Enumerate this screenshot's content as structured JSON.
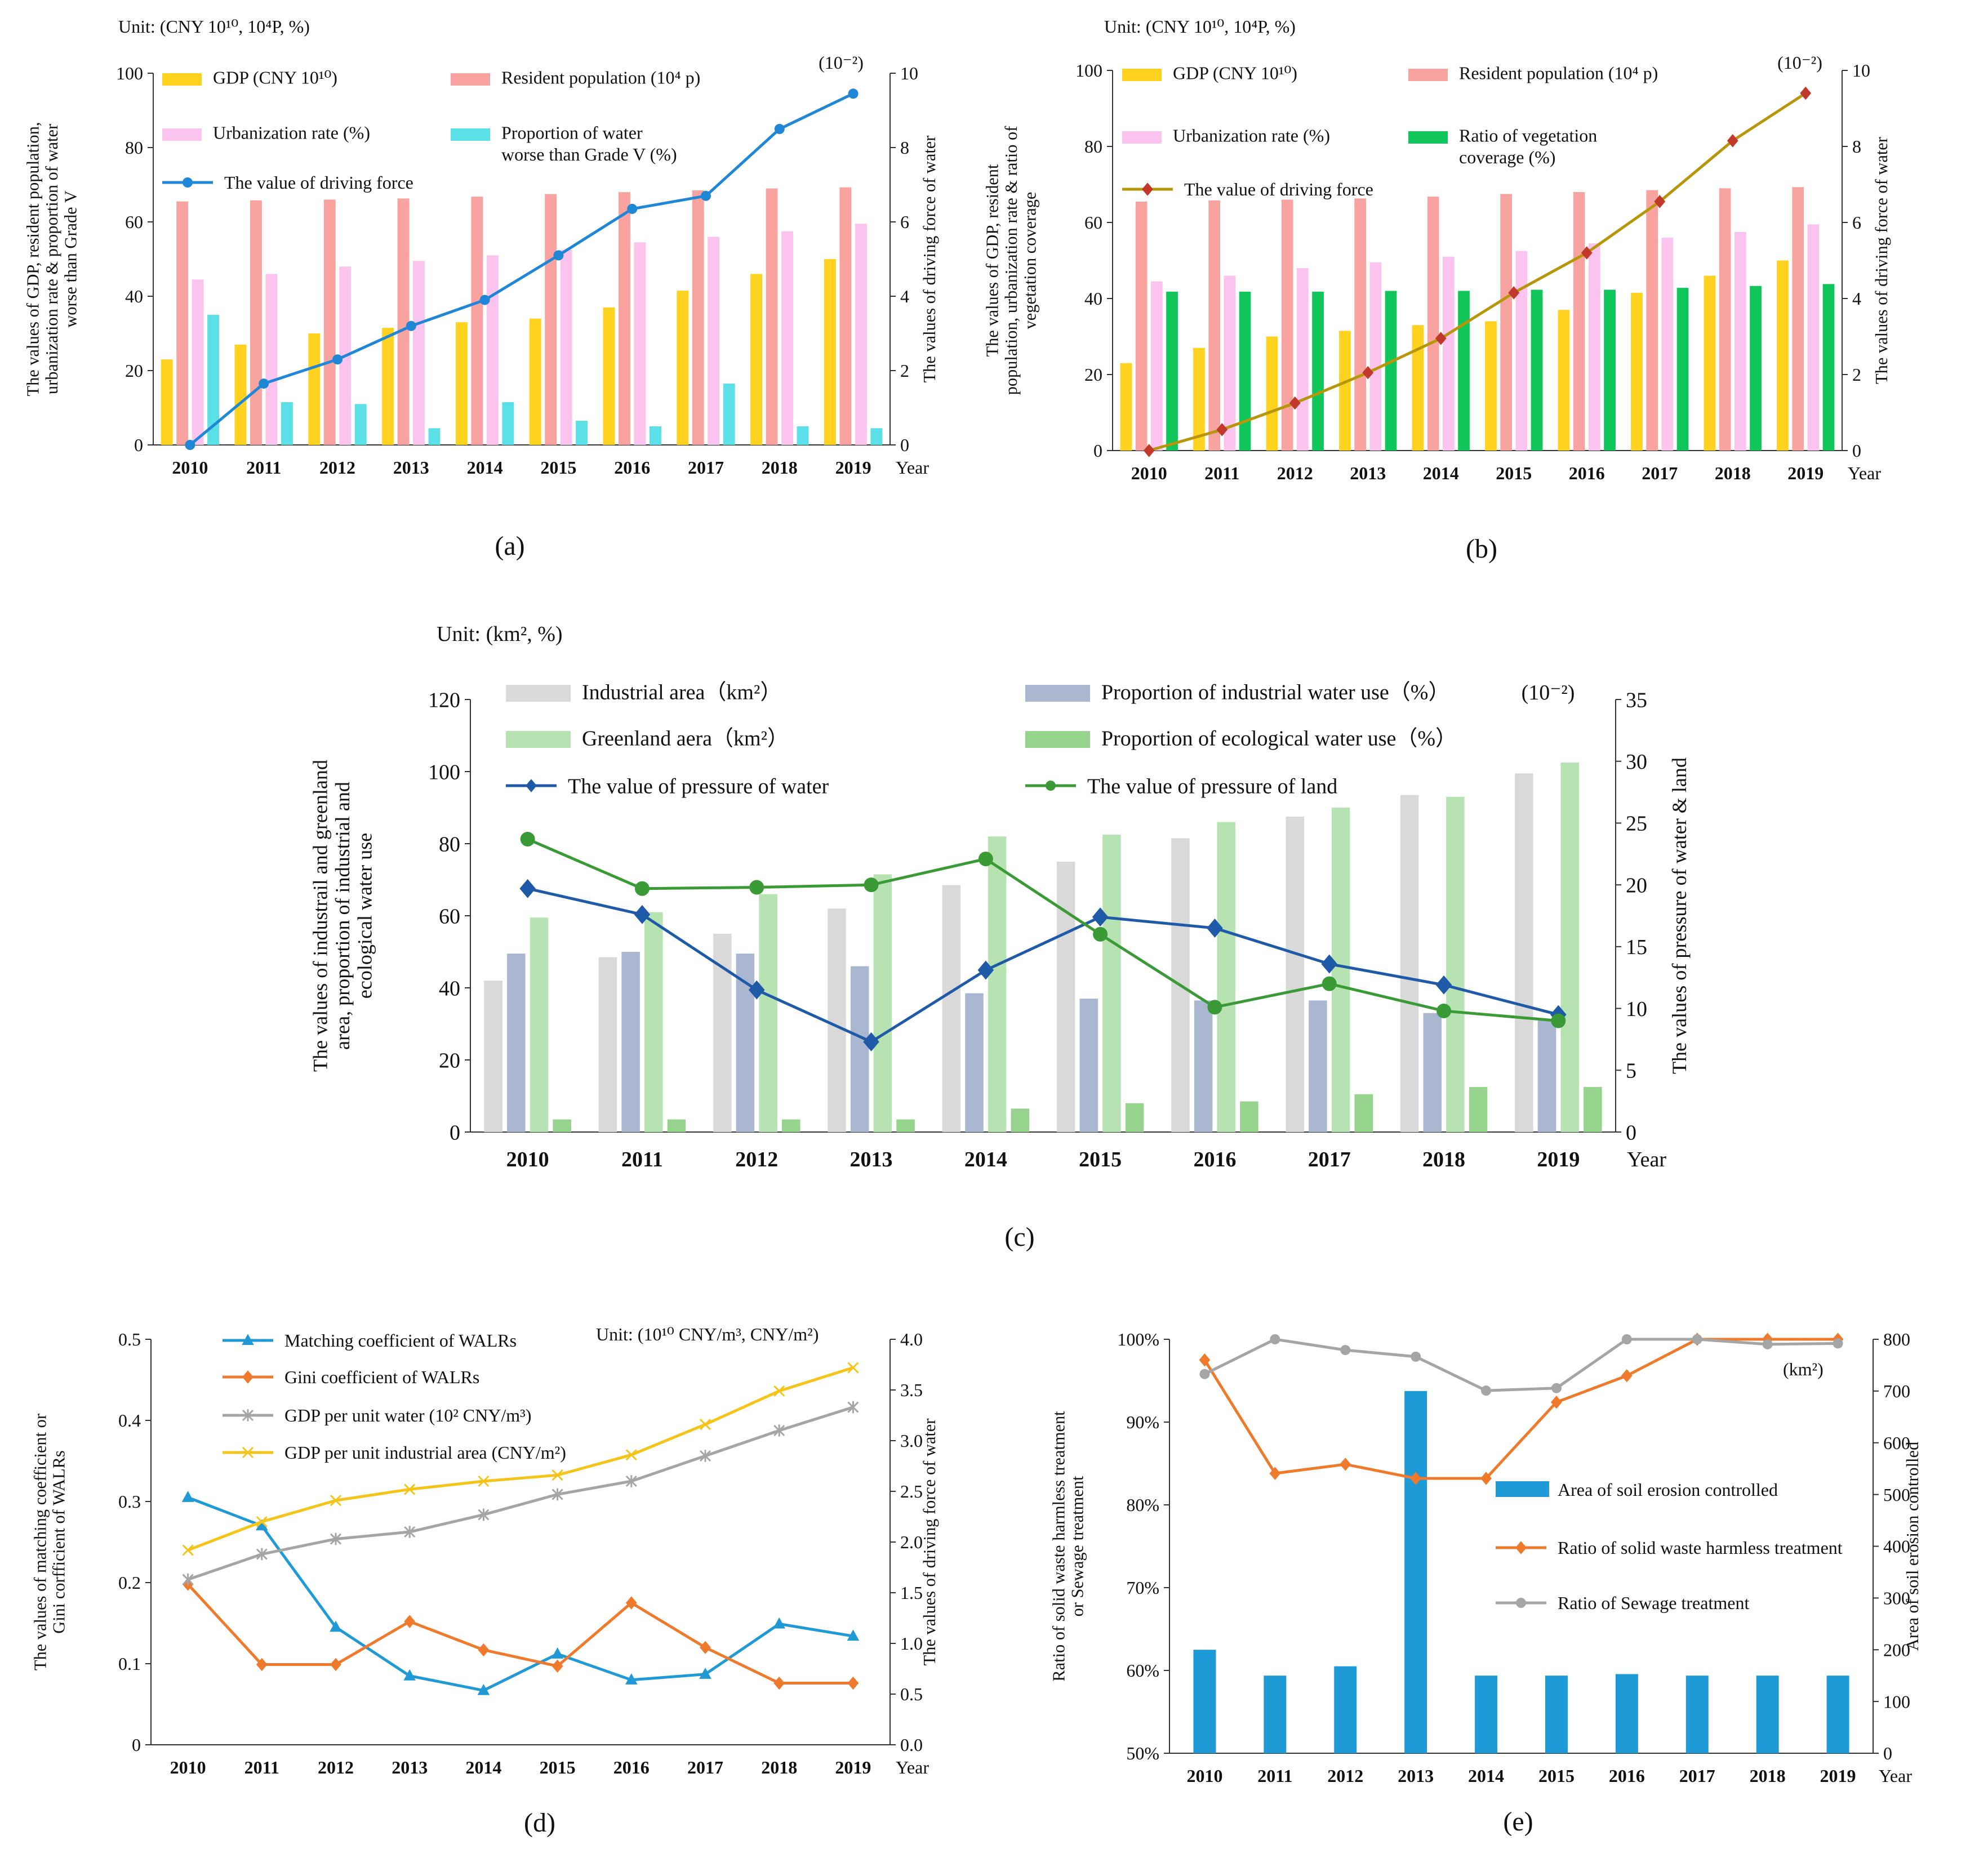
{
  "years": [
    "2010",
    "2011",
    "2012",
    "2013",
    "2014",
    "2015",
    "2016",
    "2017",
    "2018",
    "2019"
  ],
  "year_label": "Year",
  "chart_data": [
    {
      "id": "a",
      "panel_label": "(a)",
      "type": "bar+line",
      "unit_text": "Unit: (CNY 10¹⁰, 10⁴P, %)",
      "exponent_label": "(10⁻²)",
      "ylabel_left": [
        "The values of GDP, resident population,",
        "urbanization rate & proportion of water",
        "worse than Grade V"
      ],
      "ylabel_right": [
        "The values of driving force of water"
      ],
      "ylim_left": [
        0,
        100
      ],
      "ylim_right": [
        0,
        10
      ],
      "yticks_left": [
        "0",
        "20",
        "40",
        "60",
        "80",
        "100"
      ],
      "yticks_right": [
        "0",
        "2",
        "4",
        "6",
        "8",
        "10"
      ],
      "bar_series": [
        {
          "name": "GDP (CNY 10¹⁰)",
          "color": "#ffd21f",
          "values": [
            23.0,
            27.0,
            30.0,
            31.5,
            33.0,
            34.0,
            37.0,
            41.5,
            46.0,
            50.0
          ]
        },
        {
          "name": "Resident population (10⁴ p)",
          "color": "#f8a3a0",
          "values": [
            65.5,
            65.8,
            66.0,
            66.3,
            66.8,
            67.5,
            68.0,
            68.5,
            69.0,
            69.3
          ]
        },
        {
          "name": "Urbanization rate (%)",
          "color": "#fbc4ef",
          "values": [
            44.5,
            46.0,
            48.0,
            49.5,
            51.0,
            52.5,
            54.5,
            56.0,
            57.5,
            59.5
          ]
        },
        {
          "name": "Proportion of water worse than Grade V (%)",
          "color": "#5ce0e8",
          "values": [
            35.0,
            11.5,
            11.0,
            4.5,
            11.5,
            6.5,
            5.0,
            16.5,
            5.0,
            4.5
          ]
        }
      ],
      "line_series": [
        {
          "name": "The value of driving force",
          "color": "#1f87d6",
          "marker": "circle",
          "axis": "right",
          "values": [
            0.0,
            1.65,
            2.3,
            3.2,
            3.9,
            5.1,
            6.35,
            6.7,
            8.5,
            9.45
          ]
        }
      ]
    },
    {
      "id": "b",
      "panel_label": "(b)",
      "type": "bar+line",
      "unit_text": "Unit: (CNY 10¹⁰, 10⁴P, %)",
      "exponent_label": "(10⁻²)",
      "ylabel_left": [
        "The values of GDP, resident",
        "population, urbanization rate & ratio of",
        "vegetation coverage"
      ],
      "ylabel_right": [
        "The values of driving force of water"
      ],
      "ylim_left": [
        0,
        100
      ],
      "ylim_right": [
        0,
        10
      ],
      "yticks_left": [
        "0",
        "20",
        "40",
        "60",
        "80",
        "100"
      ],
      "yticks_right": [
        "0",
        "2",
        "4",
        "6",
        "8",
        "10"
      ],
      "bar_series": [
        {
          "name": "GDP (CNY 10¹⁰)",
          "color": "#ffd21f",
          "values": [
            23.0,
            27.0,
            30.0,
            31.5,
            33.0,
            34.0,
            37.0,
            41.5,
            46.0,
            50.0
          ]
        },
        {
          "name": "Resident population (10⁴ p)",
          "color": "#f8a3a0",
          "values": [
            65.5,
            65.8,
            66.0,
            66.3,
            66.8,
            67.5,
            68.0,
            68.5,
            69.0,
            69.3
          ]
        },
        {
          "name": "Urbanization rate (%)",
          "color": "#fbc4ef",
          "values": [
            44.5,
            46.0,
            48.0,
            49.5,
            51.0,
            52.5,
            54.5,
            56.0,
            57.5,
            59.5
          ]
        },
        {
          "name": "Ratio of vegetation coverage (%)",
          "color": "#10c65a",
          "values": [
            41.8,
            41.8,
            41.8,
            42.0,
            42.0,
            42.3,
            42.3,
            42.8,
            43.3,
            43.8
          ]
        }
      ],
      "line_series": [
        {
          "name": "The value of driving force",
          "color": "#c0392b",
          "line_color": "#b8960a",
          "marker": "diamond",
          "axis": "right",
          "values": [
            0.0,
            0.55,
            1.25,
            2.05,
            2.95,
            4.15,
            5.2,
            6.55,
            8.15,
            9.4
          ]
        }
      ]
    },
    {
      "id": "c",
      "panel_label": "(c)",
      "type": "bar+line",
      "unit_text": "Unit: (km², %)",
      "exponent_label": "(10⁻²)",
      "ylabel_left": [
        "The values of industrail and greenland",
        "area, proportion of industrial and",
        "ecological water use"
      ],
      "ylabel_right": [
        "The values of pressure of water & land"
      ],
      "ylim_left": [
        0,
        120
      ],
      "ylim_right": [
        0,
        35
      ],
      "yticks_left": [
        "0",
        "20",
        "40",
        "60",
        "80",
        "100",
        "120"
      ],
      "yticks_right": [
        "0",
        "5",
        "10",
        "15",
        "20",
        "25",
        "30",
        "35"
      ],
      "bar_series": [
        {
          "name": "Industrial area（km²）",
          "color": "#d9d9d9",
          "values": [
            42.0,
            48.5,
            55.0,
            62.0,
            68.5,
            75.0,
            81.5,
            87.5,
            93.5,
            99.5
          ]
        },
        {
          "name": "Proportion of industrial water use（%）",
          "color": "#a9b7d1",
          "values": [
            49.5,
            50.0,
            49.5,
            46.0,
            38.5,
            37.0,
            36.5,
            36.5,
            33.0,
            31.0
          ]
        },
        {
          "name": "Greenland aera（km²）",
          "color": "#b7e3b3",
          "values": [
            59.5,
            61.0,
            66.0,
            71.5,
            82.0,
            82.5,
            86.0,
            90.0,
            93.0,
            102.5
          ]
        },
        {
          "name": "Proportion of ecological water use（%）",
          "color": "#96d38c",
          "values": [
            3.5,
            3.5,
            3.5,
            3.5,
            6.5,
            8.0,
            8.5,
            10.5,
            12.5,
            12.5
          ]
        }
      ],
      "line_series": [
        {
          "name": "The value of pressure of water",
          "color": "#1f5aa8",
          "marker": "diamond",
          "axis": "right",
          "values": [
            19.7,
            17.6,
            11.5,
            7.3,
            13.1,
            17.4,
            16.5,
            13.6,
            11.9,
            9.5
          ]
        },
        {
          "name": "The value of pressure of land",
          "color": "#3a9a35",
          "marker": "circle",
          "axis": "right",
          "values": [
            23.7,
            19.7,
            19.8,
            20.0,
            22.1,
            16.0,
            10.1,
            12.0,
            9.8,
            9.0
          ]
        }
      ]
    },
    {
      "id": "d",
      "panel_label": "(d)",
      "type": "line",
      "unit_text": "Unit: (10¹⁰ CNY/m³, CNY/m²)",
      "ylabel_left": [
        "The values of matching coefficient or",
        "Gini corfficient of WALRs"
      ],
      "ylabel_right": [
        "The values of driving force of water"
      ],
      "ylim_left": [
        0,
        0.5
      ],
      "ylim_right": [
        0,
        4.0
      ],
      "yticks_left": [
        "0",
        "0.1",
        "0.2",
        "0.3",
        "0.4",
        "0.5"
      ],
      "yticks_right": [
        "0.0",
        "0.5",
        "1.0",
        "1.5",
        "2.0",
        "2.5",
        "3.0",
        "3.5",
        "4.0"
      ],
      "line_series": [
        {
          "name": "Matching coefficient of WALRs",
          "color": "#1f9ad6",
          "marker": "triangle",
          "axis": "left",
          "values": [
            0.305,
            0.27,
            0.145,
            0.085,
            0.067,
            0.112,
            0.08,
            0.087,
            0.149,
            0.134
          ]
        },
        {
          "name": "Gini coefficient of WALRs",
          "color": "#f07a2c",
          "marker": "diamond",
          "axis": "left",
          "values": [
            0.198,
            0.099,
            0.099,
            0.152,
            0.117,
            0.097,
            0.175,
            0.12,
            0.076,
            0.076
          ]
        },
        {
          "name": "GDP per unit water (10² CNY/m³)",
          "color": "#a5a5a5",
          "marker": "star",
          "axis": "right",
          "values": [
            1.63,
            1.88,
            2.03,
            2.1,
            2.27,
            2.47,
            2.6,
            2.85,
            3.1,
            3.33
          ]
        },
        {
          "name": "GDP per unit industrial area  (CNY/m²)",
          "color": "#f5c419",
          "marker": "cross",
          "axis": "right",
          "values": [
            1.92,
            2.2,
            2.41,
            2.52,
            2.6,
            2.66,
            2.86,
            3.16,
            3.49,
            3.72
          ]
        }
      ]
    },
    {
      "id": "e",
      "panel_label": "(e)",
      "type": "bar+line",
      "unit_text": "(km²)",
      "ylabel_left": [
        "Ratio of solid waste harmless treatment",
        "or Sewage treatment"
      ],
      "ylabel_right": [
        "Area of soil erosion controlled"
      ],
      "ylim_left": [
        50,
        100
      ],
      "ylim_right": [
        0,
        800
      ],
      "yticks_left": [
        "50%",
        "60%",
        "70%",
        "80%",
        "90%",
        "100%"
      ],
      "yticks_right": [
        "0",
        "100",
        "200",
        "300",
        "400",
        "500",
        "600",
        "700",
        "800"
      ],
      "bar_series": [
        {
          "name": "Area of soil erosion controlled",
          "color": "#1e9ad7",
          "axis": "right",
          "values": [
            200,
            150,
            168,
            700,
            150,
            150,
            153,
            150,
            150,
            150
          ]
        }
      ],
      "line_series": [
        {
          "name": "Ratio of solid waste harmless treatment",
          "color": "#f07a2c",
          "marker": "diamond",
          "axis": "left",
          "values": [
            97.5,
            83.8,
            84.9,
            83.2,
            83.2,
            92.4,
            95.6,
            100.0,
            100.0,
            100.0
          ]
        },
        {
          "name": "Ratio of Sewage treatment",
          "color": "#a5a5a5",
          "marker": "circle",
          "axis": "left",
          "values": [
            95.8,
            100.0,
            98.7,
            97.9,
            93.8,
            94.1,
            100.0,
            100.0,
            99.4,
            99.5
          ]
        }
      ]
    }
  ]
}
